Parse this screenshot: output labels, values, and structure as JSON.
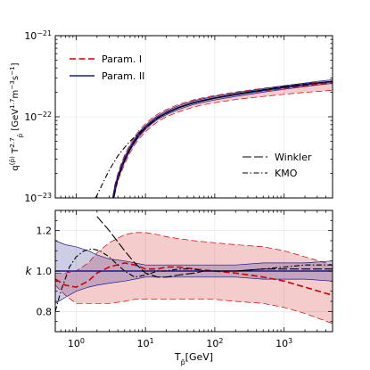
{
  "chart_data": [
    {
      "type": "line",
      "panel": "top",
      "ylabel": "q^(p̄) T_p̄^2.7 [GeV^1.7 m^-3 s^-1]",
      "xscale": "log",
      "yscale": "log",
      "xlim": [
        0.5,
        5000
      ],
      "ylim": [
        1e-23,
        1e-21
      ],
      "y_tick_labels": [
        "10^-23",
        "10^-22",
        "10^-21"
      ],
      "legend_position": "top-left",
      "legend": [
        {
          "label": "Param. I",
          "style": "dashed",
          "color": "#cc0000"
        },
        {
          "label": "Param. II",
          "style": "solid",
          "color": "#1a1a8c"
        }
      ],
      "legend2_position": "lower-right",
      "legend2": [
        {
          "label": "Winkler",
          "style": "long-dash",
          "color": "#000000"
        },
        {
          "label": "KMO",
          "style": "dash-dot",
          "color": "#000000"
        }
      ],
      "series": [
        {
          "name": "Param. I",
          "color": "#cc0000",
          "style": "dashed",
          "x": [
            3.4,
            3.6,
            4,
            4.5,
            5,
            6,
            7,
            8,
            10,
            12,
            15,
            20,
            30,
            50,
            70,
            100,
            200,
            300,
            500,
            1000,
            2000,
            3000,
            5000
          ],
          "y": [
            1e-23,
            1.3e-23,
            1.8e-23,
            2.4e-23,
            3e-23,
            4.1e-23,
            5.1e-23,
            6e-23,
            7.4e-23,
            8.5e-23,
            9.8e-23,
            1.12e-22,
            1.3e-22,
            1.5e-22,
            1.6e-22,
            1.7e-22,
            1.88e-22,
            1.98e-22,
            2.1e-22,
            2.26e-22,
            2.42e-22,
            2.51e-22,
            2.6e-22
          ],
          "band_lower": [
            1e-23,
            1.15e-23,
            1.6e-23,
            2.1e-23,
            2.6e-23,
            3.6e-23,
            4.5e-23,
            5.3e-23,
            6.5e-23,
            7.5e-23,
            8.7e-23,
            1e-22,
            1.15e-22,
            1.32e-22,
            1.41e-22,
            1.49e-22,
            1.63e-22,
            1.7e-22,
            1.78e-22,
            1.89e-22,
            2e-22,
            2.05e-22,
            2.12e-22
          ],
          "band_upper": [
            1.05e-23,
            1.45e-23,
            2e-23,
            2.7e-23,
            3.4e-23,
            4.6e-23,
            5.7e-23,
            6.7e-23,
            8.2e-23,
            9.4e-23,
            1.08e-22,
            1.23e-22,
            1.42e-22,
            1.62e-22,
            1.73e-22,
            1.83e-22,
            2.02e-22,
            2.12e-22,
            2.25e-22,
            2.42e-22,
            2.58e-22,
            2.66e-22,
            2.75e-22
          ]
        },
        {
          "name": "Param. II",
          "color": "#1a1a8c",
          "style": "solid",
          "x": [
            3.4,
            3.6,
            4,
            4.5,
            5,
            6,
            7,
            8,
            10,
            12,
            15,
            20,
            30,
            50,
            70,
            100,
            200,
            300,
            500,
            1000,
            2000,
            3000,
            5000
          ],
          "y": [
            1e-23,
            1.3e-23,
            1.8e-23,
            2.4e-23,
            3e-23,
            4.1e-23,
            5.1e-23,
            6e-23,
            7.4e-23,
            8.5e-23,
            9.8e-23,
            1.12e-22,
            1.3e-22,
            1.5e-22,
            1.6e-22,
            1.7e-22,
            1.88e-22,
            1.98e-22,
            2.12e-22,
            2.3e-22,
            2.48e-22,
            2.6e-22,
            2.72e-22
          ],
          "band_lower": [
            1e-23,
            1.2e-23,
            1.7e-23,
            2.25e-23,
            2.8e-23,
            3.85e-23,
            4.8e-23,
            5.65e-23,
            7e-23,
            8.05e-23,
            9.3e-23,
            1.06e-22,
            1.23e-22,
            1.42e-22,
            1.52e-22,
            1.61e-22,
            1.78e-22,
            1.88e-22,
            2.01e-22,
            2.18e-22,
            2.35e-22,
            2.46e-22,
            2.58e-22
          ],
          "band_upper": [
            1.05e-23,
            1.4e-23,
            1.9e-23,
            2.55e-23,
            3.2e-23,
            4.35e-23,
            5.4e-23,
            6.35e-23,
            7.8e-23,
            8.95e-23,
            1.03e-22,
            1.18e-22,
            1.37e-22,
            1.58e-22,
            1.68e-22,
            1.79e-22,
            1.98e-22,
            2.08e-22,
            2.23e-22,
            2.42e-22,
            2.61e-22,
            2.74e-22,
            2.86e-22
          ]
        },
        {
          "name": "Winkler",
          "color": "#000000",
          "style": "long-dash",
          "x": [
            3.5,
            4,
            5,
            6,
            8,
            10,
            15,
            20,
            30,
            50,
            100,
            200,
            500,
            1000,
            2000,
            5000
          ],
          "y": [
            1e-23,
            1.7e-23,
            2.9e-23,
            4e-23,
            5.9e-23,
            7.3e-23,
            9.7e-23,
            1.11e-22,
            1.29e-22,
            1.49e-22,
            1.7e-22,
            1.9e-22,
            2.15e-22,
            2.35e-22,
            2.52e-22,
            2.74e-22
          ]
        },
        {
          "name": "KMO",
          "color": "#000000",
          "style": "dash-dot",
          "x": [
            1.9,
            2,
            2.5,
            3,
            4,
            5,
            6,
            8,
            10,
            15,
            20,
            30,
            50,
            100,
            200,
            500,
            1000,
            2000,
            5000
          ],
          "y": [
            1e-23,
            1.08e-23,
            1.6e-23,
            2.2e-23,
            3.3e-23,
            4.2e-23,
            5e-23,
            6.3e-23,
            7.5e-23,
            9.6e-23,
            1.1e-22,
            1.29e-22,
            1.49e-22,
            1.7e-22,
            1.9e-22,
            2.15e-22,
            2.35e-22,
            2.52e-22,
            2.74e-22
          ]
        }
      ]
    },
    {
      "type": "line",
      "panel": "bottom",
      "xlabel": "T_p̄[GeV]",
      "ylabel": "k",
      "xscale": "log",
      "yscale": "linear",
      "xlim": [
        0.5,
        5000
      ],
      "ylim": [
        0.7,
        1.3
      ],
      "y_ticks": [
        0.8,
        1.0,
        1.2
      ],
      "y_tick_labels": [
        "0.8",
        "1.0",
        "1.2"
      ],
      "x_ticks": [
        1,
        10,
        100,
        1000
      ],
      "x_tick_labels": [
        "10^0",
        "10^1",
        "10^2",
        "10^3"
      ],
      "series": [
        {
          "name": "Param. I",
          "color": "#cc0000",
          "style": "dashed",
          "x": [
            0.5,
            0.7,
            1,
            1.5,
            2,
            3,
            5,
            7,
            10,
            15,
            20,
            30,
            50,
            100,
            200,
            500,
            1000,
            2000,
            5000
          ],
          "y": [
            0.96,
            0.93,
            0.92,
            0.95,
            0.99,
            1.02,
            1.04,
            1.03,
            1.01,
            1.01,
            1.02,
            1.02,
            1.01,
            1.0,
            0.99,
            0.97,
            0.95,
            0.92,
            0.88
          ],
          "band_lower": [
            0.93,
            0.88,
            0.84,
            0.84,
            0.84,
            0.84,
            0.85,
            0.86,
            0.86,
            0.86,
            0.86,
            0.86,
            0.86,
            0.86,
            0.85,
            0.84,
            0.82,
            0.79,
            0.74
          ],
          "band_upper": [
            0.99,
            0.99,
            1.0,
            1.04,
            1.09,
            1.14,
            1.18,
            1.19,
            1.19,
            1.18,
            1.17,
            1.16,
            1.15,
            1.14,
            1.13,
            1.12,
            1.1,
            1.07,
            1.03
          ]
        },
        {
          "name": "Param. II",
          "color": "#1a1a8c",
          "style": "solid",
          "x": [
            0.5,
            5000
          ],
          "y": [
            1.0,
            1.0
          ],
          "band_x": [
            0.5,
            0.7,
            1,
            1.5,
            2,
            3,
            5,
            7,
            10,
            20,
            50,
            100,
            200,
            500,
            1000,
            2000,
            5000
          ],
          "band_lower": [
            0.84,
            0.87,
            0.9,
            0.92,
            0.93,
            0.94,
            0.95,
            0.96,
            0.97,
            0.97,
            0.97,
            0.97,
            0.97,
            0.96,
            0.96,
            0.96,
            0.95
          ],
          "band_upper": [
            1.15,
            1.13,
            1.12,
            1.1,
            1.08,
            1.06,
            1.05,
            1.04,
            1.03,
            1.03,
            1.03,
            1.03,
            1.03,
            1.04,
            1.04,
            1.04,
            1.05
          ]
        },
        {
          "name": "Winkler",
          "color": "#000000",
          "style": "long-dash",
          "x": [
            2,
            3,
            5,
            7,
            10,
            15,
            20,
            30,
            50,
            70,
            100,
            200,
            500,
            1000,
            2000,
            5000
          ],
          "y": [
            1.27,
            1.2,
            1.1,
            1.04,
            0.99,
            0.97,
            0.97,
            0.98,
            0.99,
            1.0,
            1.0,
            1.0,
            1.01,
            1.01,
            1.01,
            1.01
          ]
        },
        {
          "name": "KMO",
          "color": "#000000",
          "style": "dash-dot",
          "x": [
            0.5,
            0.6,
            0.8,
            1,
            1.3,
            1.7,
            2.2,
            3,
            4,
            5,
            7,
            10,
            15,
            20,
            30,
            50,
            70,
            100,
            200,
            500,
            1000,
            2000,
            5000
          ],
          "y": [
            0.8,
            0.9,
            1.02,
            1.07,
            1.1,
            1.11,
            1.1,
            1.07,
            1.03,
            1.0,
            0.97,
            0.98,
            1.0,
            1.0,
            1.01,
            1.01,
            1.0,
            1.0,
            1.0,
            1.01,
            1.02,
            1.03,
            1.03
          ]
        }
      ]
    }
  ]
}
